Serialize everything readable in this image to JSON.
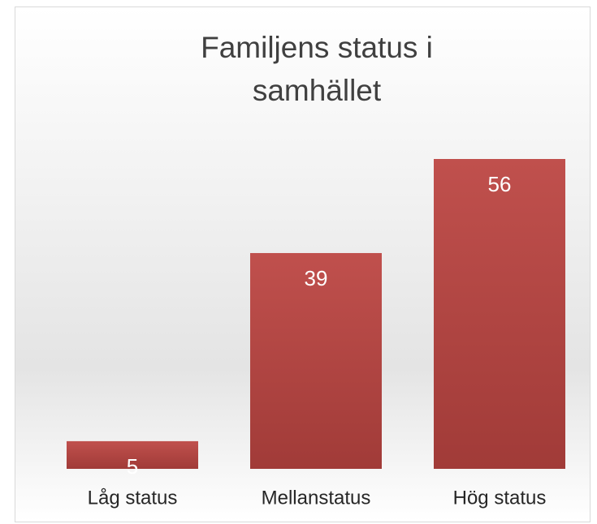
{
  "chart_data": {
    "type": "bar",
    "title": "Familjens status i samhället",
    "categories": [
      "Låg status",
      "Mellanstatus",
      "Hög status"
    ],
    "values": [
      5,
      39,
      56
    ],
    "color": "#c0504d"
  }
}
